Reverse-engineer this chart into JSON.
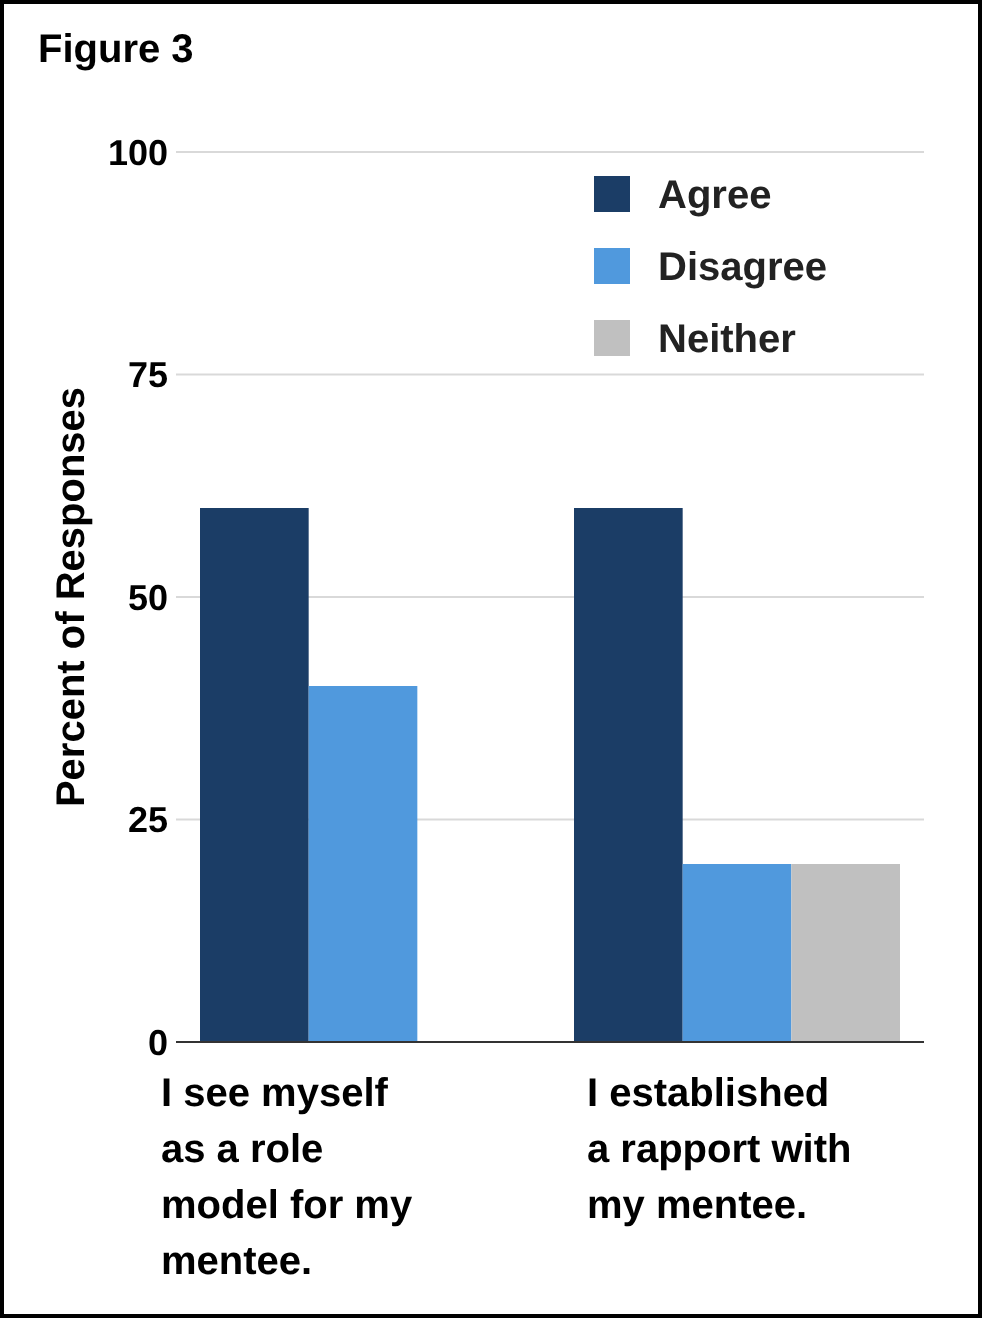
{
  "chart_data": {
    "type": "bar",
    "title": "Figure 3",
    "ylabel": "Percent of Responses",
    "categories": [
      "I see myself as a role model for my mentee.",
      "I established a rapport with my mentee."
    ],
    "series": [
      {
        "name": "Agree",
        "color": "#1b3d66",
        "values": [
          60,
          60
        ]
      },
      {
        "name": "Disagree",
        "color": "#5099dd",
        "values": [
          40,
          20
        ]
      },
      {
        "name": "Neither",
        "color": "#c0c0c0",
        "values": [
          null,
          20
        ]
      }
    ],
    "ylim": [
      0,
      100
    ],
    "yticks": [
      0,
      25,
      50,
      75,
      100
    ],
    "grid": "y",
    "legend": "top right"
  }
}
